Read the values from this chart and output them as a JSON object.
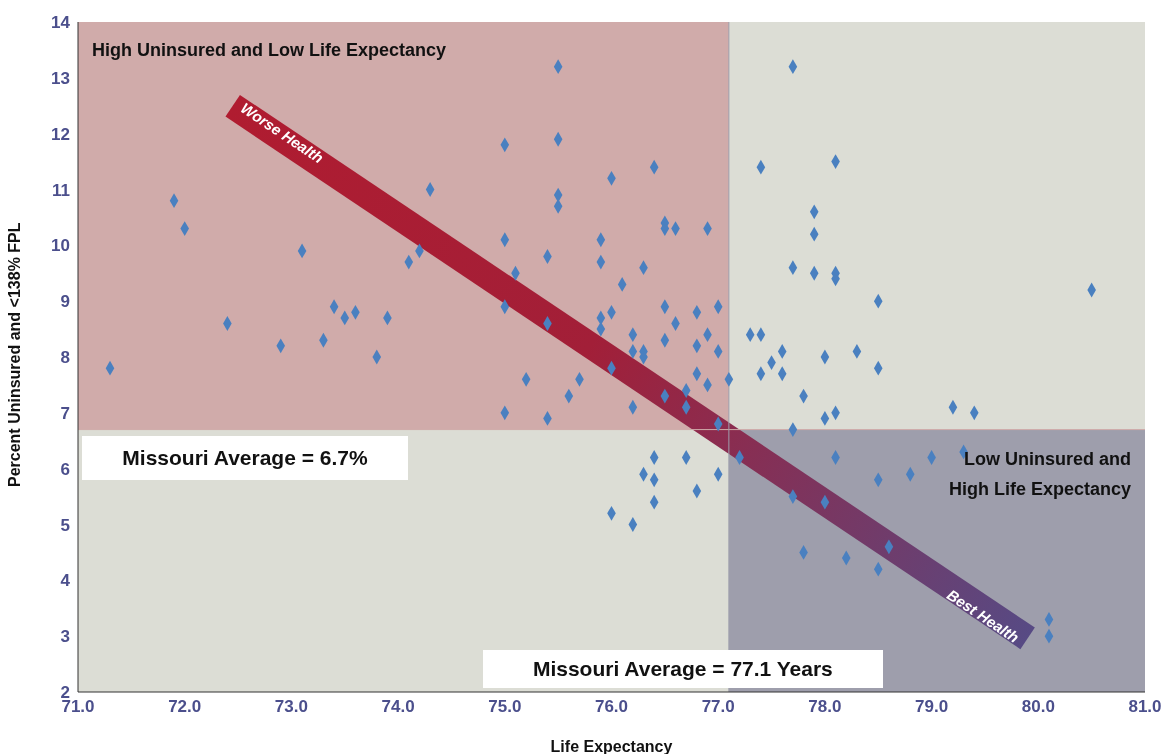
{
  "chart_data": {
    "type": "scatter",
    "xlabel": "Life Expectancy",
    "ylabel": "Percent Uninsured and <138% FPL",
    "xlim": [
      71,
      81
    ],
    "ylim": [
      2,
      14
    ],
    "xticks": [
      {
        "value": 71,
        "label": "71.0"
      },
      {
        "value": 72,
        "label": "72.0"
      },
      {
        "value": 73,
        "label": "73.0"
      },
      {
        "value": 74,
        "label": "74.0"
      },
      {
        "value": 75,
        "label": "75.0"
      },
      {
        "value": 76,
        "label": "76.0"
      },
      {
        "value": 77,
        "label": "77.0"
      },
      {
        "value": 78,
        "label": "78.0"
      },
      {
        "value": 79,
        "label": "79.0"
      },
      {
        "value": 80,
        "label": "80.0"
      },
      {
        "value": 81,
        "label": "81.0"
      }
    ],
    "yticks": [
      2,
      3,
      4,
      5,
      6,
      7,
      8,
      9,
      10,
      11,
      12,
      13,
      14
    ],
    "grid": false,
    "marker": "diamond",
    "series": [
      {
        "color": "#4a80c0",
        "x": [
          71.3,
          71.9,
          72.0,
          72.4,
          72.9,
          73.1,
          73.3,
          73.4,
          73.5,
          73.6,
          73.8,
          73.9,
          74.1,
          74.2,
          74.3,
          75.0,
          75.0,
          75.0,
          75.0,
          75.1,
          75.2,
          75.4,
          75.4,
          75.4,
          75.5,
          75.5,
          75.5,
          75.5,
          75.6,
          75.7,
          75.9,
          75.9,
          75.9,
          75.9,
          76.0,
          76.0,
          76.0,
          76.0,
          76.1,
          76.2,
          76.2,
          76.2,
          76.2,
          76.3,
          76.3,
          76.3,
          76.3,
          76.4,
          76.4,
          76.4,
          76.4,
          76.5,
          76.5,
          76.5,
          76.5,
          76.5,
          76.6,
          76.6,
          76.7,
          76.7,
          76.7,
          76.8,
          76.8,
          76.8,
          76.8,
          76.9,
          76.9,
          76.9,
          77.0,
          77.0,
          77.0,
          77.0,
          77.1,
          77.2,
          77.3,
          77.4,
          77.4,
          77.4,
          77.5,
          77.6,
          77.6,
          77.7,
          77.7,
          77.7,
          77.7,
          77.8,
          77.8,
          77.9,
          77.9,
          77.9,
          78.0,
          78.0,
          78.0,
          78.1,
          78.1,
          78.1,
          78.1,
          78.1,
          78.2,
          78.3,
          78.5,
          78.5,
          78.5,
          78.5,
          78.6,
          78.8,
          79.0,
          79.2,
          79.3,
          79.4,
          80.5,
          80.1,
          80.1
        ],
        "values": [
          7.8,
          10.8,
          10.3,
          8.6,
          8.2,
          9.9,
          8.3,
          8.9,
          8.7,
          8.8,
          8.0,
          8.7,
          9.7,
          9.9,
          11.0,
          11.8,
          10.1,
          8.9,
          7.0,
          9.5,
          7.6,
          9.8,
          8.6,
          6.9,
          13.2,
          11.9,
          10.9,
          10.7,
          7.3,
          7.6,
          10.1,
          9.7,
          8.7,
          8.5,
          11.2,
          8.8,
          7.8,
          5.2,
          9.3,
          8.4,
          8.1,
          7.1,
          5.0,
          9.6,
          8.1,
          8.0,
          5.9,
          11.4,
          6.2,
          5.8,
          5.4,
          10.4,
          10.3,
          8.9,
          8.3,
          7.3,
          10.3,
          8.6,
          7.4,
          7.1,
          6.2,
          8.8,
          8.2,
          7.7,
          5.6,
          10.3,
          8.4,
          7.5,
          8.9,
          8.1,
          6.8,
          5.9,
          7.6,
          6.2,
          8.4,
          11.4,
          8.4,
          7.7,
          7.9,
          8.1,
          7.7,
          13.2,
          9.6,
          6.7,
          5.5,
          7.3,
          4.5,
          10.6,
          10.2,
          9.5,
          8.0,
          6.9,
          5.4,
          11.5,
          9.5,
          9.4,
          7.0,
          6.2,
          4.4,
          8.1,
          9.0,
          7.8,
          5.8,
          4.2,
          4.6,
          5.9,
          6.2,
          7.1,
          6.3,
          7.0,
          9.2,
          3.3,
          3.0
        ]
      }
    ],
    "ref_lines": [
      {
        "axis": "y",
        "value": 6.7,
        "label": "Missouri Average = 6.7%",
        "color": "#d0abaa"
      },
      {
        "axis": "x",
        "value": 77.1,
        "label": "Missouri Average = 77.1 Years",
        "color": "#9e9eac"
      }
    ],
    "annotations": [
      "High Uninsured and Low Life Expectancy",
      "Low Uninsured and High Life Expectancy",
      "Worse Health",
      "Best Health"
    ]
  }
}
